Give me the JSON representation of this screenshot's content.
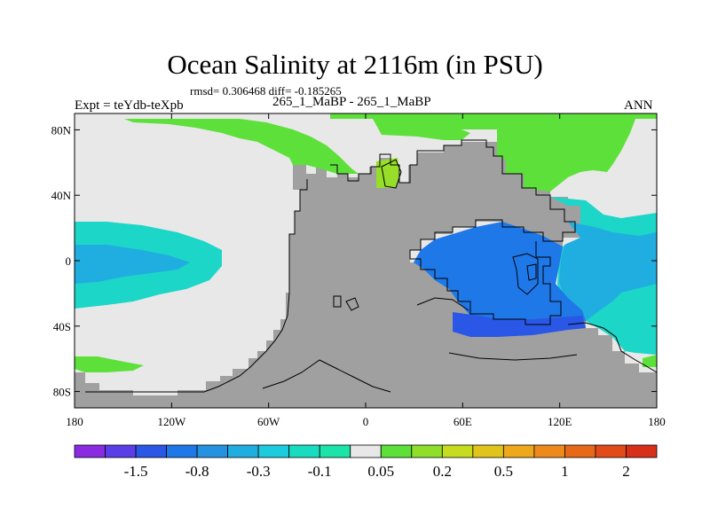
{
  "header": {
    "title": "Ocean Salinity at 2116m (in PSU)",
    "stats": "rmsd= 0.306468 diff= -0.185265",
    "left_label": "Expt = teYdb-teXpb",
    "center_label": "265_1_MaBP - 265_1_MaBP",
    "right_label": "ANN"
  },
  "chart_data": {
    "type": "heatmap",
    "title": "Ocean Salinity at 2116m (in PSU)",
    "subtitle": "rmsd= 0.306468 diff= -0.185265",
    "units": "PSU",
    "x_axis": {
      "range": [
        -180,
        180
      ],
      "tick_values": [
        -180,
        -120,
        -60,
        0,
        60,
        120,
        180
      ],
      "tick_labels": [
        "180",
        "120W",
        "60W",
        "0",
        "60E",
        "120E",
        "180"
      ]
    },
    "y_axis": {
      "range": [
        -90,
        90
      ],
      "tick_values": [
        80,
        40,
        0,
        -40,
        -80
      ],
      "tick_labels": [
        "80N",
        "40N",
        "0",
        "40S",
        "80S"
      ]
    },
    "colorbar": {
      "colors": [
        "#8a2be2",
        "#5a3fe8",
        "#2a57e6",
        "#1e78e8",
        "#2492e0",
        "#20aee0",
        "#1ccbde",
        "#18dcc0",
        "#1ce4a8",
        "#e8e8e8",
        "#5ee03a",
        "#8ede2a",
        "#c6dc1e",
        "#e0c41c",
        "#eea81c",
        "#ee8a1c",
        "#e8681a",
        "#e24a18",
        "#d83018"
      ],
      "label_values": [
        -1.5,
        -0.8,
        -0.3,
        -0.1,
        0.05,
        0.2,
        0.5,
        1,
        2
      ],
      "labels": [
        "-1.5",
        "-0.8",
        "-0.3",
        "-0.1",
        "0.05",
        "0.2",
        "0.5",
        "1",
        "2"
      ]
    },
    "legend_placement": "bottom"
  }
}
